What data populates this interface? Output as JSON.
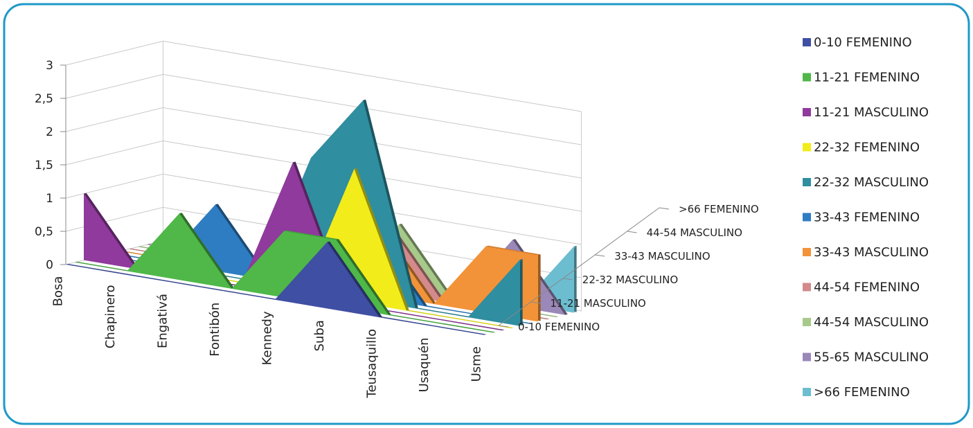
{
  "chart_data": {
    "type": "area",
    "title": "",
    "ylim": [
      0,
      3
    ],
    "y_ticks": [
      "0",
      "0,5",
      "1",
      "1,5",
      "2",
      "2,5",
      "3"
    ],
    "categories": [
      "Bosa",
      "Chapinero",
      "Engativá",
      "Fontibón",
      "Kennedy",
      "Suba",
      "Teusaquillo",
      "Usaquén",
      "Usme"
    ],
    "depth_labels": [
      ">66 FEMENINO",
      "44-54 MASCULINO",
      "33-43 MASCULINO",
      "22-32 MASCULINO",
      "11-21 MASCULINO",
      "0-10 FEMENINO"
    ],
    "legend_position": "right",
    "grid": true,
    "series": [
      {
        "name": "0-10 FEMENINO",
        "color": "#3f4fa3",
        "values": [
          0,
          0,
          0,
          0,
          0,
          1,
          0,
          0,
          0
        ]
      },
      {
        "name": "11-21 FEMENINO",
        "color": "#4fb848",
        "values": [
          0,
          0,
          1,
          0,
          1,
          1,
          0,
          0,
          0
        ]
      },
      {
        "name": "11-21 MASCULINO",
        "color": "#8f3a9c",
        "values": [
          1,
          0,
          0,
          0,
          2,
          0,
          0,
          0,
          0
        ]
      },
      {
        "name": "22-32 FEMENINO",
        "color": "#f2ec1a",
        "values": [
          0,
          0,
          0,
          0,
          0,
          2,
          0,
          0,
          0
        ]
      },
      {
        "name": "22-32 MASCULINO",
        "color": "#2f8ea0",
        "values": [
          0,
          0,
          0,
          0,
          2,
          3,
          0,
          0,
          1
        ]
      },
      {
        "name": "33-43 FEMENINO",
        "color": "#2e7dc2",
        "values": [
          0,
          0,
          1,
          0,
          0,
          1,
          0,
          0,
          0
        ]
      },
      {
        "name": "33-43 MASCULINO",
        "color": "#f29339",
        "values": [
          0,
          0,
          0,
          0,
          0,
          1,
          0,
          1,
          1
        ]
      },
      {
        "name": "44-54 FEMENINO",
        "color": "#d48a8a",
        "values": [
          0,
          0,
          0,
          0,
          0,
          1,
          0,
          0,
          0
        ]
      },
      {
        "name": "44-54 MASCULINO",
        "color": "#a7c98a",
        "values": [
          0,
          0,
          0,
          0,
          0,
          1,
          0,
          0,
          0
        ]
      },
      {
        "name": "55-65 MASCULINO",
        "color": "#9a88b8",
        "values": [
          0,
          0,
          0,
          0,
          0,
          0,
          0,
          1,
          0
        ]
      },
      {
        "name": ">66 FEMENINO",
        "color": "#6cbdd0",
        "values": [
          0,
          0,
          0,
          0,
          0,
          0,
          0,
          0,
          1
        ]
      }
    ]
  }
}
